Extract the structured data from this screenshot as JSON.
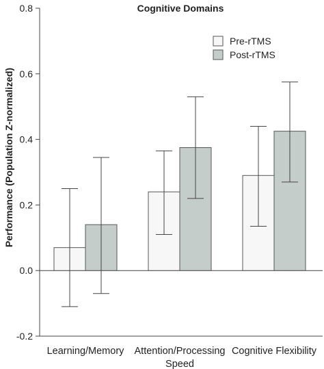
{
  "chart_data": {
    "type": "bar",
    "title": "Cognitive Domains",
    "ylabel": "Performance (Population Z-normalized)",
    "xlabel": "",
    "ylim": [
      -0.2,
      0.8
    ],
    "yticks": [
      "-0.2",
      "0.0",
      "0.2",
      "0.4",
      "0.6",
      "0.8"
    ],
    "categories": [
      [
        "Learning/Memory"
      ],
      [
        "Attention/Processing",
        "Speed"
      ],
      [
        "Cognitive Flexibility"
      ]
    ],
    "series": [
      {
        "name": "Pre-rTMS",
        "color": "#f7f7f7",
        "values": [
          0.07,
          0.24,
          0.29
        ],
        "error_low": [
          -0.11,
          0.11,
          0.135
        ],
        "error_high": [
          0.25,
          0.365,
          0.44
        ]
      },
      {
        "name": "Post-rTMS",
        "color": "#c5cdcb",
        "values": [
          0.14,
          0.375,
          0.425
        ],
        "error_low": [
          -0.07,
          0.22,
          0.27
        ],
        "error_high": [
          0.345,
          0.53,
          0.575
        ]
      }
    ],
    "legend_position": "top-right"
  }
}
